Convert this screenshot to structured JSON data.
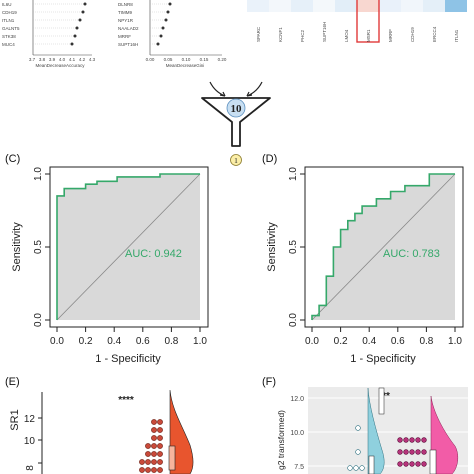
{
  "top_panels": {
    "importance_left": {
      "features": [
        "IL6U",
        "CDH19",
        "ITLN1",
        "GALNT5",
        "STK38",
        "MUC4"
      ],
      "xlabel": "MeanDecreaseAccuracy",
      "ticks": [
        "3.7",
        "3.8",
        "3.9",
        "4.0",
        "4.1",
        "4.2",
        "4.3"
      ]
    },
    "importance_mid": {
      "features": [
        "DLNR8",
        "TIMM9",
        "NPY1R",
        "NAALAD2",
        "MRRF",
        "SUPT16H"
      ],
      "xlabel": "MeanDecreaseGini",
      "ticks": [
        "0.00",
        "0.05",
        "0.10",
        "0.15",
        "0.20"
      ]
    },
    "heatmap_labels": [
      "SPARC",
      "KCNF1",
      "PHC2",
      "SUPT16H",
      "LMO4",
      "MSR1",
      "MRRF",
      "CDH19",
      "ERCC4",
      "ITLN1"
    ],
    "highlighted_gene": "MSR1"
  },
  "funnel": {
    "top_count": "10",
    "bottom_count": "1"
  },
  "chart_data": [
    {
      "type": "line",
      "panel": "(C)",
      "xlabel": "1 - Specificity",
      "ylabel": "Sensitivity",
      "xlim": [
        0,
        1
      ],
      "ylim": [
        0,
        1
      ],
      "xticks": [
        "0.0",
        "0.2",
        "0.4",
        "0.6",
        "0.8",
        "1.0"
      ],
      "yticks": [
        "0.0",
        "0.5",
        "1.0"
      ],
      "annotation": "AUC: 0.942",
      "color": "#35a86a",
      "x": [
        0.0,
        0.0,
        0.05,
        0.05,
        0.2,
        0.2,
        0.28,
        0.28,
        0.42,
        0.42,
        0.72,
        0.72,
        1.0
      ],
      "y": [
        0.0,
        0.85,
        0.85,
        0.9,
        0.9,
        0.93,
        0.93,
        0.95,
        0.95,
        0.98,
        0.98,
        1.0,
        1.0
      ]
    },
    {
      "type": "line",
      "panel": "(D)",
      "xlabel": "1 - Specificity",
      "ylabel": "Sensitivity",
      "xlim": [
        0,
        1
      ],
      "ylim": [
        0,
        1
      ],
      "xticks": [
        "0.0",
        "0.2",
        "0.4",
        "0.6",
        "0.8",
        "1.0"
      ],
      "yticks": [
        "0.0",
        "0.5",
        "1.0"
      ],
      "annotation": "AUC: 0.783",
      "color": "#35a86a",
      "x": [
        0.0,
        0.0,
        0.05,
        0.05,
        0.1,
        0.1,
        0.15,
        0.15,
        0.2,
        0.2,
        0.25,
        0.25,
        0.3,
        0.3,
        0.35,
        0.35,
        0.45,
        0.45,
        0.55,
        0.55,
        0.65,
        0.65,
        0.82,
        0.82,
        1.0
      ],
      "y": [
        0.0,
        0.03,
        0.03,
        0.1,
        0.1,
        0.3,
        0.3,
        0.5,
        0.5,
        0.62,
        0.62,
        0.68,
        0.68,
        0.73,
        0.73,
        0.78,
        0.78,
        0.83,
        0.83,
        0.88,
        0.88,
        0.92,
        0.92,
        1.0,
        1.0
      ]
    }
  ],
  "bottom_panels": {
    "E": {
      "panel": "(E)",
      "ylabel_fragment": "SR1",
      "yticks": [
        "12",
        "10",
        "8"
      ],
      "significance": "****",
      "dot_color": "#c94a3a",
      "violin_color": "#e8552e"
    },
    "F": {
      "panel": "(F)",
      "ylabel_fragment": "g2 transformed)",
      "yticks": [
        "12.0",
        "10.0",
        "7.5"
      ],
      "significance": "**",
      "dot_color": "#b5337a",
      "violin_left_color": "#8fd0de",
      "violin_right_color": "#f25ca7"
    }
  }
}
